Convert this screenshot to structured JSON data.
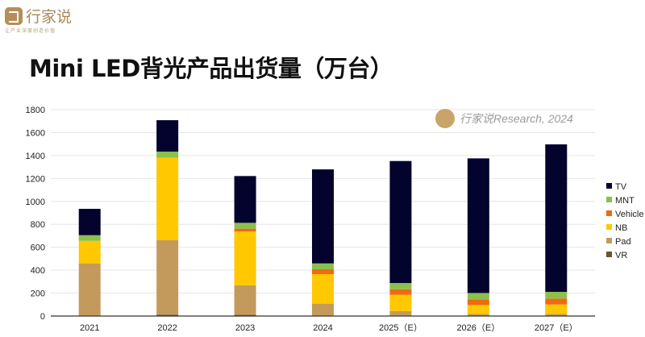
{
  "brand": {
    "name": "行家说",
    "slogan": "让产业深度创造价值"
  },
  "watermark": "行家说Research, 2024",
  "chart_data": {
    "type": "bar",
    "stacked": true,
    "title": "Mini LED背光产品出货量（万台）",
    "xlabel": "",
    "ylabel": "",
    "ylim": [
      0,
      1800
    ],
    "yticks": [
      0,
      200,
      400,
      600,
      800,
      1000,
      1200,
      1400,
      1600,
      1800
    ],
    "grid": true,
    "legend_position": "right",
    "categories": [
      "2021",
      "2022",
      "2023",
      "2024",
      "2025（E）",
      "2026（E）",
      "2027（E）"
    ],
    "series": [
      {
        "name": "VR",
        "color": "#6b5530",
        "values": [
          0,
          12,
          10,
          3,
          5,
          3,
          3
        ]
      },
      {
        "name": "Pad",
        "color": "#c49a5c",
        "values": [
          457,
          649,
          259,
          105,
          39,
          15,
          15
        ]
      },
      {
        "name": "NB",
        "color": "#ffc800",
        "values": [
          199,
          719,
          469,
          257,
          141,
          78,
          83
        ]
      },
      {
        "name": "Vehicle",
        "color": "#f06a10",
        "values": [
          0,
          0,
          24,
          43,
          49,
          49,
          51
        ]
      },
      {
        "name": "MNT",
        "color": "#8cc04c",
        "values": [
          49,
          54,
          51,
          51,
          54,
          56,
          59
        ]
      },
      {
        "name": "TV",
        "color": "#03032e",
        "values": [
          230,
          274,
          408,
          820,
          1064,
          1174,
          1286
        ]
      }
    ]
  }
}
